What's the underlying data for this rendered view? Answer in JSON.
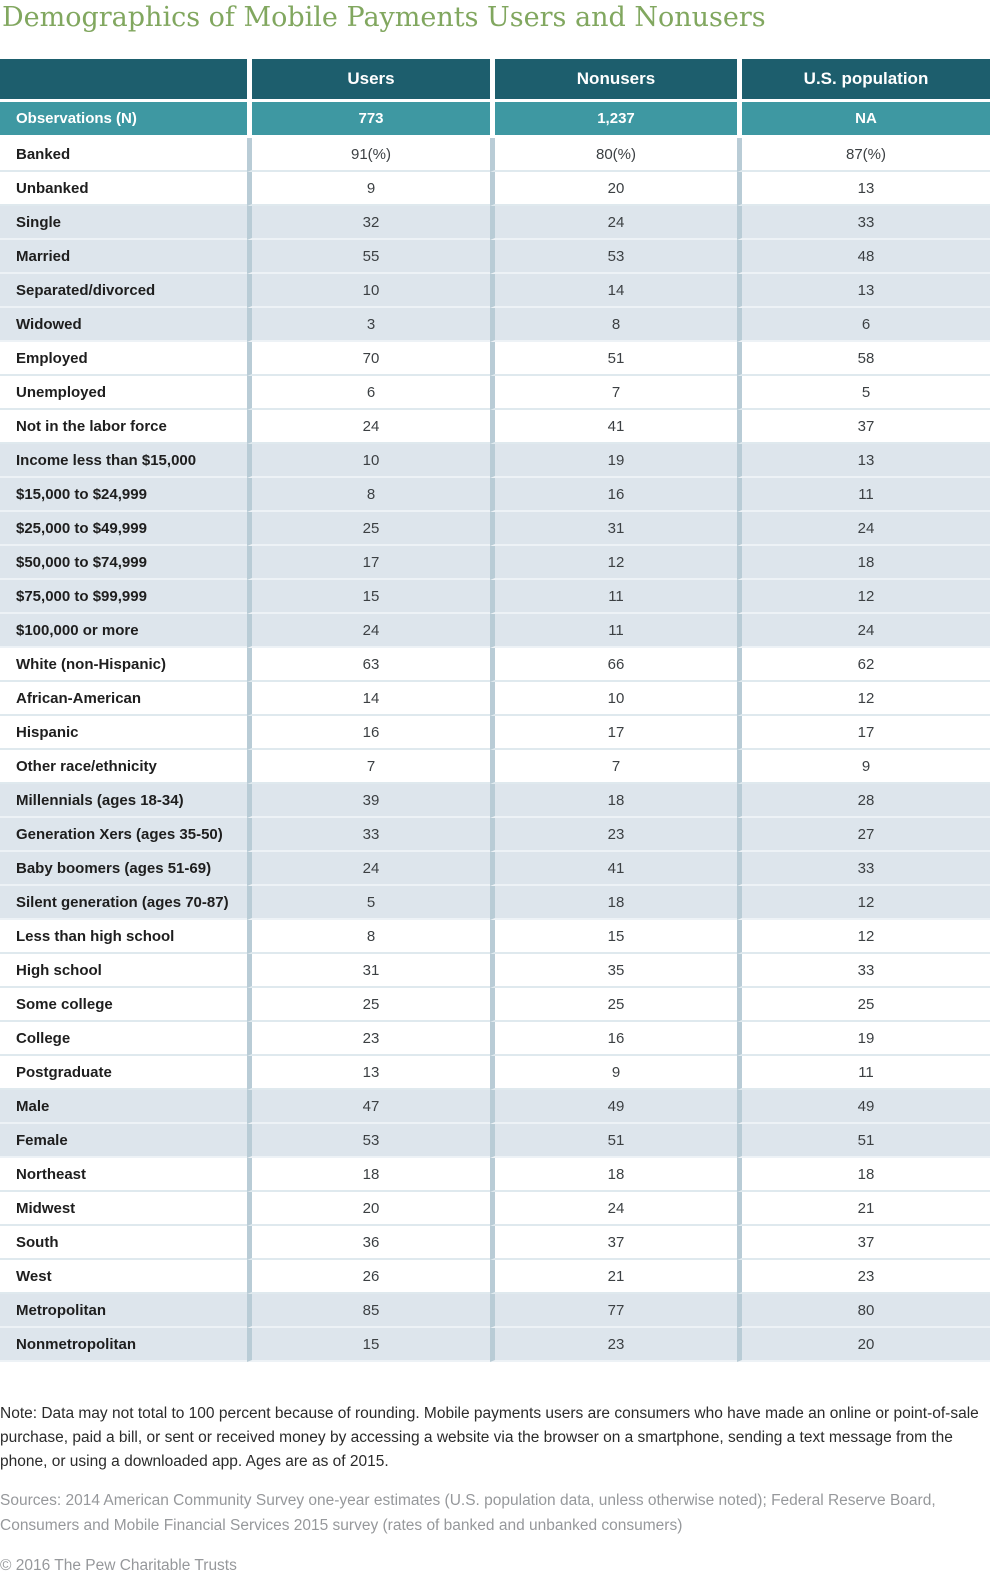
{
  "title": "Demographics of Mobile Payments Users and Nonusers",
  "colors": {
    "title_green": "#81a75f",
    "header_teal": "#1d5e6d",
    "observations_teal": "#3e98a2",
    "shaded_row": "#dde5ec",
    "column_separator": "#b9ccd6"
  },
  "chart_data": {
    "type": "table",
    "columns": [
      "",
      "Users",
      "Nonusers",
      "U.S. population"
    ],
    "observations_row": {
      "label": "Observations (N)",
      "values": [
        "773",
        "1,237",
        "NA"
      ]
    },
    "groups": [
      {
        "name": "banking-status",
        "shaded": false,
        "rows": [
          {
            "label": "Banked",
            "values": [
              "91(%)",
              "80(%)",
              "87(%)"
            ]
          },
          {
            "label": "Unbanked",
            "values": [
              "9",
              "20",
              "13"
            ]
          }
        ]
      },
      {
        "name": "marital-status",
        "shaded": true,
        "rows": [
          {
            "label": "Single",
            "values": [
              "32",
              "24",
              "33"
            ]
          },
          {
            "label": "Married",
            "values": [
              "55",
              "53",
              "48"
            ]
          },
          {
            "label": "Separated/divorced",
            "values": [
              "10",
              "14",
              "13"
            ]
          },
          {
            "label": "Widowed",
            "values": [
              "3",
              "8",
              "6"
            ]
          }
        ]
      },
      {
        "name": "employment",
        "shaded": false,
        "rows": [
          {
            "label": "Employed",
            "values": [
              "70",
              "51",
              "58"
            ]
          },
          {
            "label": "Unemployed",
            "values": [
              "6",
              "7",
              "5"
            ]
          },
          {
            "label": "Not in the labor force",
            "values": [
              "24",
              "41",
              "37"
            ]
          }
        ]
      },
      {
        "name": "income",
        "shaded": true,
        "rows": [
          {
            "label": "Income less than $15,000",
            "values": [
              "10",
              "19",
              "13"
            ]
          },
          {
            "label": "$15,000 to $24,999",
            "values": [
              "8",
              "16",
              "11"
            ]
          },
          {
            "label": "$25,000 to $49,999",
            "values": [
              "25",
              "31",
              "24"
            ]
          },
          {
            "label": "$50,000 to $74,999",
            "values": [
              "17",
              "12",
              "18"
            ]
          },
          {
            "label": "$75,000 to $99,999",
            "values": [
              "15",
              "11",
              "12"
            ]
          },
          {
            "label": "$100,000 or more",
            "values": [
              "24",
              "11",
              "24"
            ]
          }
        ]
      },
      {
        "name": "race-ethnicity",
        "shaded": false,
        "rows": [
          {
            "label": "White (non-Hispanic)",
            "values": [
              "63",
              "66",
              "62"
            ]
          },
          {
            "label": "African-American",
            "values": [
              "14",
              "10",
              "12"
            ]
          },
          {
            "label": "Hispanic",
            "values": [
              "16",
              "17",
              "17"
            ]
          },
          {
            "label": "Other race/ethnicity",
            "values": [
              "7",
              "7",
              "9"
            ]
          }
        ]
      },
      {
        "name": "generation",
        "shaded": true,
        "rows": [
          {
            "label": "Millennials (ages 18-34)",
            "values": [
              "39",
              "18",
              "28"
            ]
          },
          {
            "label": "Generation Xers (ages 35-50)",
            "values": [
              "33",
              "23",
              "27"
            ]
          },
          {
            "label": "Baby boomers (ages 51-69)",
            "values": [
              "24",
              "41",
              "33"
            ]
          },
          {
            "label": "Silent generation (ages 70-87)",
            "values": [
              "5",
              "18",
              "12"
            ]
          }
        ]
      },
      {
        "name": "education",
        "shaded": false,
        "rows": [
          {
            "label": "Less than high school",
            "values": [
              "8",
              "15",
              "12"
            ]
          },
          {
            "label": "High school",
            "values": [
              "31",
              "35",
              "33"
            ]
          },
          {
            "label": "Some college",
            "values": [
              "25",
              "25",
              "25"
            ]
          },
          {
            "label": "College",
            "values": [
              "23",
              "16",
              "19"
            ]
          },
          {
            "label": "Postgraduate",
            "values": [
              "13",
              "9",
              "11"
            ]
          }
        ]
      },
      {
        "name": "gender",
        "shaded": true,
        "rows": [
          {
            "label": "Male",
            "values": [
              "47",
              "49",
              "49"
            ]
          },
          {
            "label": "Female",
            "values": [
              "53",
              "51",
              "51"
            ]
          }
        ]
      },
      {
        "name": "region",
        "shaded": false,
        "rows": [
          {
            "label": "Northeast",
            "values": [
              "18",
              "18",
              "18"
            ]
          },
          {
            "label": "Midwest",
            "values": [
              "20",
              "24",
              "21"
            ]
          },
          {
            "label": "South",
            "values": [
              "36",
              "37",
              "37"
            ]
          },
          {
            "label": "West",
            "values": [
              "26",
              "21",
              "23"
            ]
          }
        ]
      },
      {
        "name": "metro-status",
        "shaded": true,
        "rows": [
          {
            "label": "Metropolitan",
            "values": [
              "85",
              "77",
              "80"
            ]
          },
          {
            "label": "Nonmetropolitan",
            "values": [
              "15",
              "23",
              "20"
            ]
          }
        ]
      }
    ]
  },
  "notes": {
    "note": "Note: Data may not total to 100 percent because of rounding. Mobile payments users are consumers who have made an online or point-of-sale purchase, paid a bill, or sent or received money by accessing a website via the browser on a smartphone, sending a text message from the phone, or using a downloaded app. Ages are as of 2015.",
    "sources": "Sources: 2014 American Community Survey one-year estimates (U.S. population data, unless otherwise noted); Federal Reserve Board, Consumers and Mobile Financial Services 2015 survey (rates of banked and unbanked consumers)",
    "copyright": "© 2016 The Pew Charitable Trusts"
  }
}
